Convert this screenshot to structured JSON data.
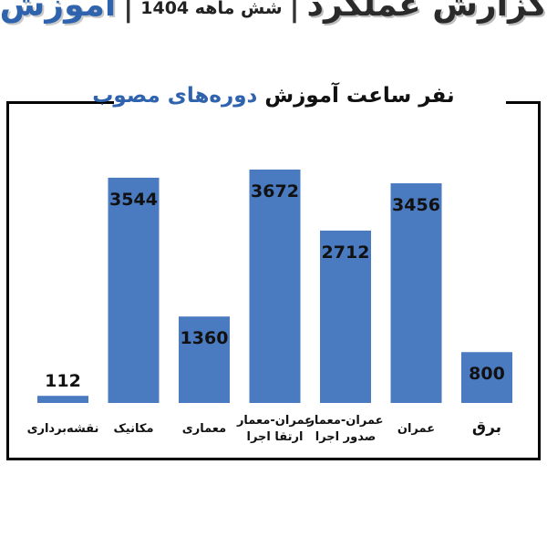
{
  "header": {
    "report": "گزارش عملکرد",
    "separator": "|",
    "period": "شش ماهه 1404",
    "section": "آموزش"
  },
  "colors": {
    "bar": "#4a7abf",
    "accent": "#2f63ad",
    "text": "#111111"
  },
  "chart_data": {
    "type": "bar",
    "title_part1": "نفر ساعت آموزش",
    "title_part2": "دوره‌های مصوب",
    "categories": [
      "برق",
      "عمران",
      "عمران-معمار صدور اجرا",
      "عمران-معمار ارتقا اجرا",
      "معماری",
      "مکانیک",
      "نقشه‌برداری"
    ],
    "category_lines": [
      [
        "برق"
      ],
      [
        "عمران"
      ],
      [
        "عمران-معمار",
        "صدور اجرا"
      ],
      [
        "عمران-معمار",
        "ارتقا اجرا"
      ],
      [
        "معماری"
      ],
      [
        "مکانیک"
      ],
      [
        "نقشه‌برداری"
      ]
    ],
    "values": [
      800,
      3456,
      2712,
      3672,
      1360,
      3544,
      112
    ],
    "direction": "rtl",
    "ylim": [
      0,
      4000
    ],
    "grid": false,
    "data_labels": true
  }
}
